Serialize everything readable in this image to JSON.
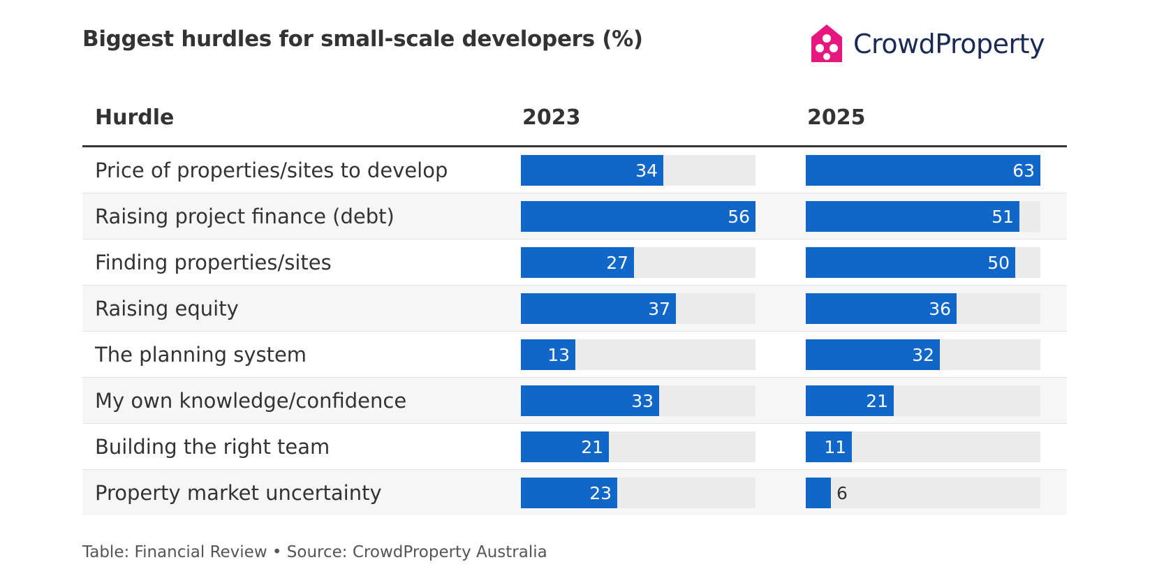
{
  "title": "Biggest hurdles for small-scale developers (%)",
  "brand": {
    "name": "CrowdProperty",
    "mark_color": "#e8177d",
    "text_color": "#1b2a55"
  },
  "colors": {
    "bar": "#1167c8",
    "track": "#ebebeb"
  },
  "chart_data": {
    "type": "table",
    "title": "Biggest hurdles for small-scale developers (%)",
    "columns": [
      "Hurdle",
      "2023",
      "2025"
    ],
    "scale_max": 56,
    "rows": [
      {
        "label": "Price of properties/sites to develop",
        "values": [
          34,
          63
        ]
      },
      {
        "label": "Raising project finance (debt)",
        "values": [
          56,
          51
        ]
      },
      {
        "label": "Finding properties/sites",
        "values": [
          27,
          50
        ]
      },
      {
        "label": "Raising equity",
        "values": [
          37,
          36
        ]
      },
      {
        "label": "The planning system",
        "values": [
          13,
          32
        ]
      },
      {
        "label": "My own knowledge/confidence",
        "values": [
          33,
          21
        ]
      },
      {
        "label": "Building the right team",
        "values": [
          21,
          11
        ]
      },
      {
        "label": "Property market uncertainty",
        "values": [
          23,
          6
        ]
      }
    ]
  },
  "footer": "Table: Financial Review • Source: CrowdProperty Australia"
}
